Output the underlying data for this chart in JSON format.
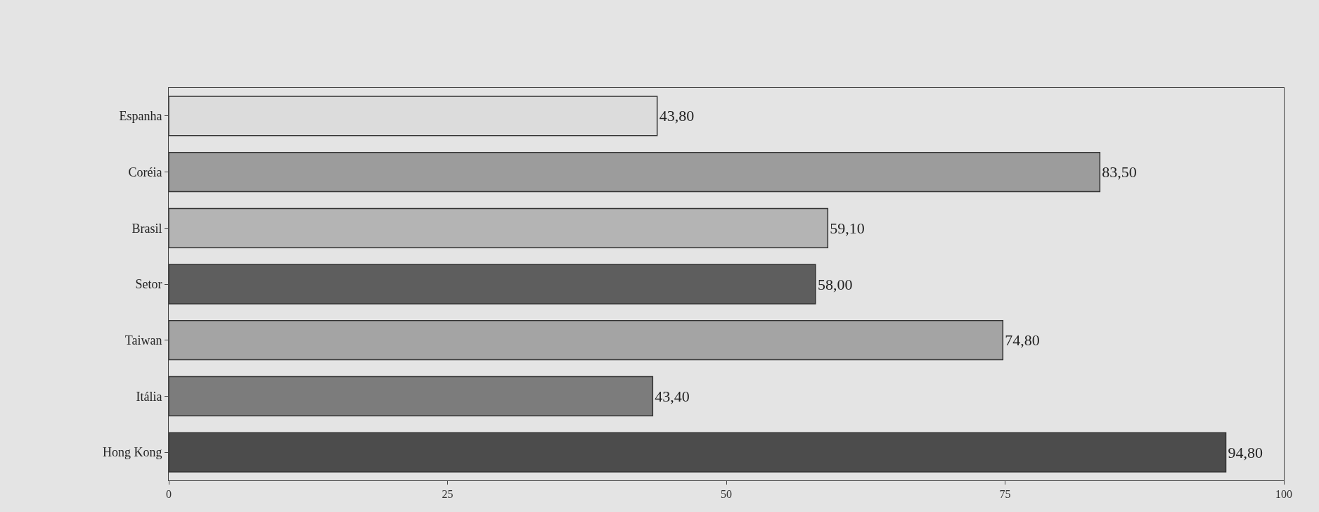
{
  "chart_data": {
    "type": "bar",
    "orientation": "horizontal",
    "categories": [
      "Espanha",
      "Coréia",
      "Brasil",
      "Setor",
      "Taiwan",
      "Itália",
      "Hong Kong"
    ],
    "values": [
      43.8,
      83.5,
      59.1,
      58.0,
      74.8,
      43.4,
      94.8
    ],
    "value_labels": [
      "43,80",
      "83,50",
      "59,10",
      "58,00",
      "74,80",
      "43,40",
      "94,80"
    ],
    "colors": [
      "#dcdcdc",
      "#9c9c9c",
      "#b4b4b4",
      "#5e5e5e",
      "#a4a4a4",
      "#7c7c7c",
      "#4c4c4c"
    ],
    "xlim": [
      0,
      100
    ],
    "xticks": [
      0,
      25,
      50,
      75,
      100
    ],
    "grid": false
  }
}
